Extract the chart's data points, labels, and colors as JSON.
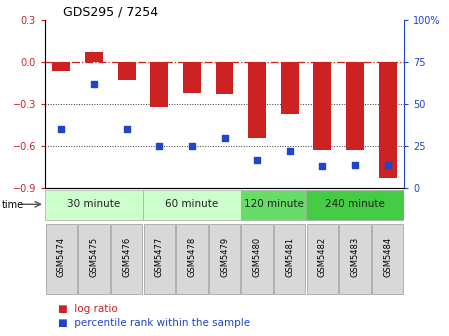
{
  "title": "GDS295 / 7254",
  "samples": [
    "GSM5474",
    "GSM5475",
    "GSM5476",
    "GSM5477",
    "GSM5478",
    "GSM5479",
    "GSM5480",
    "GSM5481",
    "GSM5482",
    "GSM5483",
    "GSM5484"
  ],
  "log_ratios": [
    -0.06,
    0.07,
    -0.13,
    -0.32,
    -0.22,
    -0.23,
    -0.54,
    -0.37,
    -0.63,
    -0.63,
    -0.83
  ],
  "percentile_ranks": [
    35,
    62,
    35,
    25,
    25,
    30,
    17,
    22,
    13,
    14,
    14
  ],
  "ylim": [
    -0.9,
    0.3
  ],
  "yticks_left": [
    -0.9,
    -0.6,
    -0.3,
    0.0,
    0.3
  ],
  "yticks_right": [
    0,
    25,
    50,
    75,
    100
  ],
  "bar_color": "#cc2222",
  "dot_color": "#2244cc",
  "bar_width": 0.55,
  "time_groups": [
    {
      "label": "30 minute",
      "start": 0,
      "end": 2,
      "color": "#ccffcc"
    },
    {
      "label": "60 minute",
      "start": 3,
      "end": 5,
      "color": "#ccffcc"
    },
    {
      "label": "120 minute",
      "start": 6,
      "end": 7,
      "color": "#66dd66"
    },
    {
      "label": "240 minute",
      "start": 8,
      "end": 10,
      "color": "#44cc44"
    }
  ],
  "hline_color": "#cc2222",
  "dotline_color": "#333333",
  "bg_color": "#ffffff",
  "tick_bg_color": "#dddddd",
  "legend_log_ratio": "log ratio",
  "legend_percentile": "percentile rank within the sample"
}
